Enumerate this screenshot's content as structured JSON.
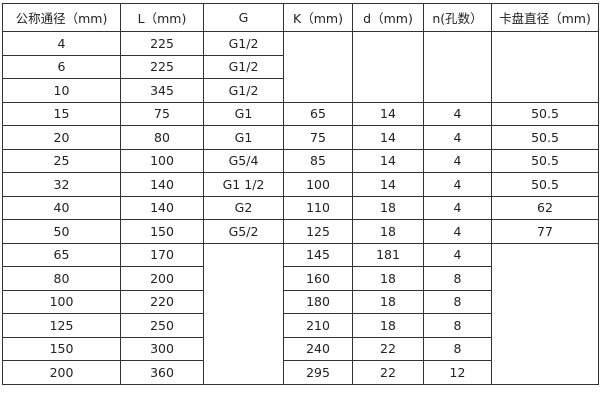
{
  "headers": [
    "公称通径（mm)",
    "L（mm)",
    "G",
    "K（mm)",
    "d（mm)",
    "n(孔数）",
    "卡盘直径（mm)"
  ],
  "rows": [
    [
      "4",
      "225",
      "G1/2",
      "",
      "",
      "",
      ""
    ],
    [
      "6",
      "225",
      "G1/2",
      "",
      "",
      "",
      ""
    ],
    [
      "10",
      "345",
      "G1/2",
      "",
      "",
      "",
      ""
    ],
    [
      "15",
      "75",
      "G1",
      "65",
      "14",
      "4",
      "50.5"
    ],
    [
      "20",
      "80",
      "G1",
      "75",
      "14",
      "4",
      "50.5"
    ],
    [
      "25",
      "100",
      "G5/4",
      "85",
      "14",
      "4",
      "50.5"
    ],
    [
      "32",
      "140",
      "G1  1/2",
      "100",
      "14",
      "4",
      "50.5"
    ],
    [
      "40",
      "140",
      "G2",
      "110",
      "18",
      "4",
      "62"
    ],
    [
      "50",
      "150",
      "G5/2",
      "125",
      "18",
      "4",
      "77"
    ],
    [
      "65",
      "170",
      "",
      "145",
      "181",
      "4",
      ""
    ],
    [
      "80",
      "200",
      "",
      "160",
      "18",
      "8",
      ""
    ],
    [
      "100",
      "220",
      "",
      "180",
      "18",
      "8",
      ""
    ],
    [
      "125",
      "250",
      "",
      "210",
      "18",
      "8",
      ""
    ],
    [
      "150",
      "300",
      "",
      "240",
      "22",
      "8",
      ""
    ],
    [
      "200",
      "360",
      "",
      "295",
      "22",
      "12",
      ""
    ]
  ]
}
